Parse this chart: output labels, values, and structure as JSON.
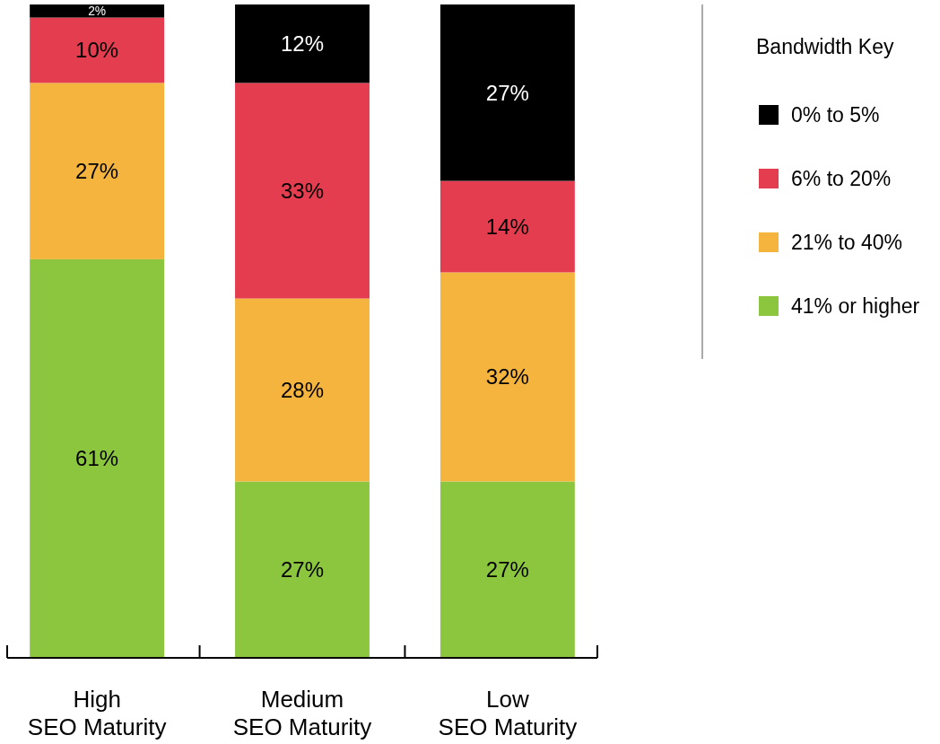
{
  "chart_data": {
    "type": "bar",
    "stacked": true,
    "legend_title": "Bandwidth Key",
    "legend": "right",
    "tick_labels": "x",
    "ylim": [
      0,
      100
    ],
    "categories": [
      "High\nSEO Maturity",
      "Medium\nSEO Maturity",
      "Low\nSEO Maturity"
    ],
    "series": [
      {
        "name": "41% or higher",
        "color": "#8cc63f",
        "values": [
          61,
          27,
          27
        ],
        "value_labels": [
          "61%",
          "27%",
          "27%"
        ]
      },
      {
        "name": "21% to 40%",
        "color": "#f4b43e",
        "values": [
          27,
          28,
          32
        ],
        "value_labels": [
          "27%",
          "28%",
          "32%"
        ]
      },
      {
        "name": "6% to 20%",
        "color": "#e43d4f",
        "values": [
          10,
          33,
          14
        ],
        "value_labels": [
          "10%",
          "33%",
          "14%"
        ]
      },
      {
        "name": "0% to 5%",
        "color": "#000000",
        "values": [
          2,
          12,
          27
        ],
        "value_labels": [
          "2%",
          "12%",
          "27%"
        ]
      }
    ]
  }
}
